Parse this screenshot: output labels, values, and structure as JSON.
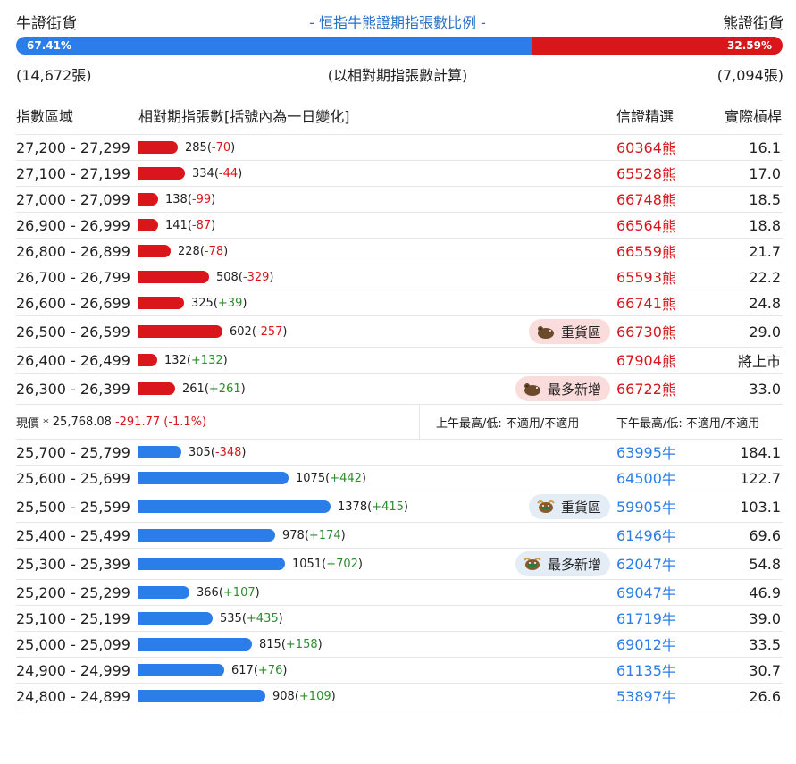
{
  "header": {
    "bull_label": "牛證街貨",
    "title": "- 恒指牛熊證期指張數比例 -",
    "bear_label": "熊證街貨"
  },
  "ratio": {
    "bull_pct_label": "67.41%",
    "bear_pct_label": "32.59%",
    "bull_fraction": 0.6741,
    "bull_count": "(14,672張)",
    "note": "(以相對期指張數計算)",
    "bear_count": "(7,094張)",
    "colors": {
      "bull": "#2b7de9",
      "bear": "#d8161c"
    }
  },
  "columns": {
    "range": "指數區域",
    "contracts": "相對期指張數[括號內為一日變化]",
    "warrant": "信證精選",
    "strike": "實際槓桿"
  },
  "bar_max": 1378,
  "bear_rows": [
    {
      "range": "27,200 - 27,299",
      "count": 285,
      "count_text": "285",
      "change": "-70",
      "code": "60364",
      "type": "熊",
      "leverage": "16.1",
      "tag": ""
    },
    {
      "range": "27,100 - 27,199",
      "count": 334,
      "count_text": "334",
      "change": "-44",
      "code": "65528",
      "type": "熊",
      "leverage": "17.0",
      "tag": ""
    },
    {
      "range": "27,000 - 27,099",
      "count": 138,
      "count_text": "138",
      "change": "-99",
      "code": "66748",
      "type": "熊",
      "leverage": "18.5",
      "tag": ""
    },
    {
      "range": "26,900 - 26,999",
      "count": 141,
      "count_text": "141",
      "change": "-87",
      "code": "66564",
      "type": "熊",
      "leverage": "18.8",
      "tag": ""
    },
    {
      "range": "26,800 - 26,899",
      "count": 228,
      "count_text": "228",
      "change": "-78",
      "code": "66559",
      "type": "熊",
      "leverage": "21.7",
      "tag": ""
    },
    {
      "range": "26,700 - 26,799",
      "count": 508,
      "count_text": "508",
      "change": "-329",
      "code": "65593",
      "type": "熊",
      "leverage": "22.2",
      "tag": ""
    },
    {
      "range": "26,600 - 26,699",
      "count": 325,
      "count_text": "325",
      "change": "+39",
      "code": "66741",
      "type": "熊",
      "leverage": "24.8",
      "tag": ""
    },
    {
      "range": "26,500 - 26,599",
      "count": 602,
      "count_text": "602",
      "change": "-257",
      "code": "66730",
      "type": "熊",
      "leverage": "29.0",
      "tag": "重貨區"
    },
    {
      "range": "26,400 - 26,499",
      "count": 132,
      "count_text": "132",
      "change": "+132",
      "code": "67904",
      "type": "熊",
      "leverage": "將上市",
      "tag": ""
    },
    {
      "range": "26,300 - 26,399",
      "count": 261,
      "count_text": "261",
      "change": "+261",
      "code": "66722",
      "type": "熊",
      "leverage": "33.0",
      "tag": "最多新增"
    }
  ],
  "price": {
    "label": "現價 *",
    "value": "25,768.08",
    "change": "-291.77 (-1.1%)",
    "am": "上午最高/低: 不適用/不適用",
    "pm": "下午最高/低: 不適用/不適用"
  },
  "bull_rows": [
    {
      "range": "25,700 - 25,799",
      "count": 305,
      "count_text": "305",
      "change": "-348",
      "code": "63995",
      "type": "牛",
      "leverage": "184.1",
      "tag": ""
    },
    {
      "range": "25,600 - 25,699",
      "count": 1075,
      "count_text": "1075",
      "change": "+442",
      "code": "64500",
      "type": "牛",
      "leverage": "122.7",
      "tag": ""
    },
    {
      "range": "25,500 - 25,599",
      "count": 1378,
      "count_text": "1378",
      "change": "+415",
      "code": "59905",
      "type": "牛",
      "leverage": "103.1",
      "tag": "重貨區"
    },
    {
      "range": "25,400 - 25,499",
      "count": 978,
      "count_text": "978",
      "change": "+174",
      "code": "61496",
      "type": "牛",
      "leverage": "69.6",
      "tag": ""
    },
    {
      "range": "25,300 - 25,399",
      "count": 1051,
      "count_text": "1051",
      "change": "+702",
      "code": "62047",
      "type": "牛",
      "leverage": "54.8",
      "tag": "最多新增"
    },
    {
      "range": "25,200 - 25,299",
      "count": 366,
      "count_text": "366",
      "change": "+107",
      "code": "69047",
      "type": "牛",
      "leverage": "46.9",
      "tag": ""
    },
    {
      "range": "25,100 - 25,199",
      "count": 535,
      "count_text": "535",
      "change": "+435",
      "code": "61719",
      "type": "牛",
      "leverage": "39.0",
      "tag": ""
    },
    {
      "range": "25,000 - 25,099",
      "count": 815,
      "count_text": "815",
      "change": "+158",
      "code": "69012",
      "type": "牛",
      "leverage": "33.5",
      "tag": ""
    },
    {
      "range": "24,900 - 24,999",
      "count": 617,
      "count_text": "617",
      "change": "+76",
      "code": "61135",
      "type": "牛",
      "leverage": "30.7",
      "tag": ""
    },
    {
      "range": "24,800 - 24,899",
      "count": 908,
      "count_text": "908",
      "change": "+109",
      "code": "53897",
      "type": "牛",
      "leverage": "26.6",
      "tag": ""
    }
  ]
}
